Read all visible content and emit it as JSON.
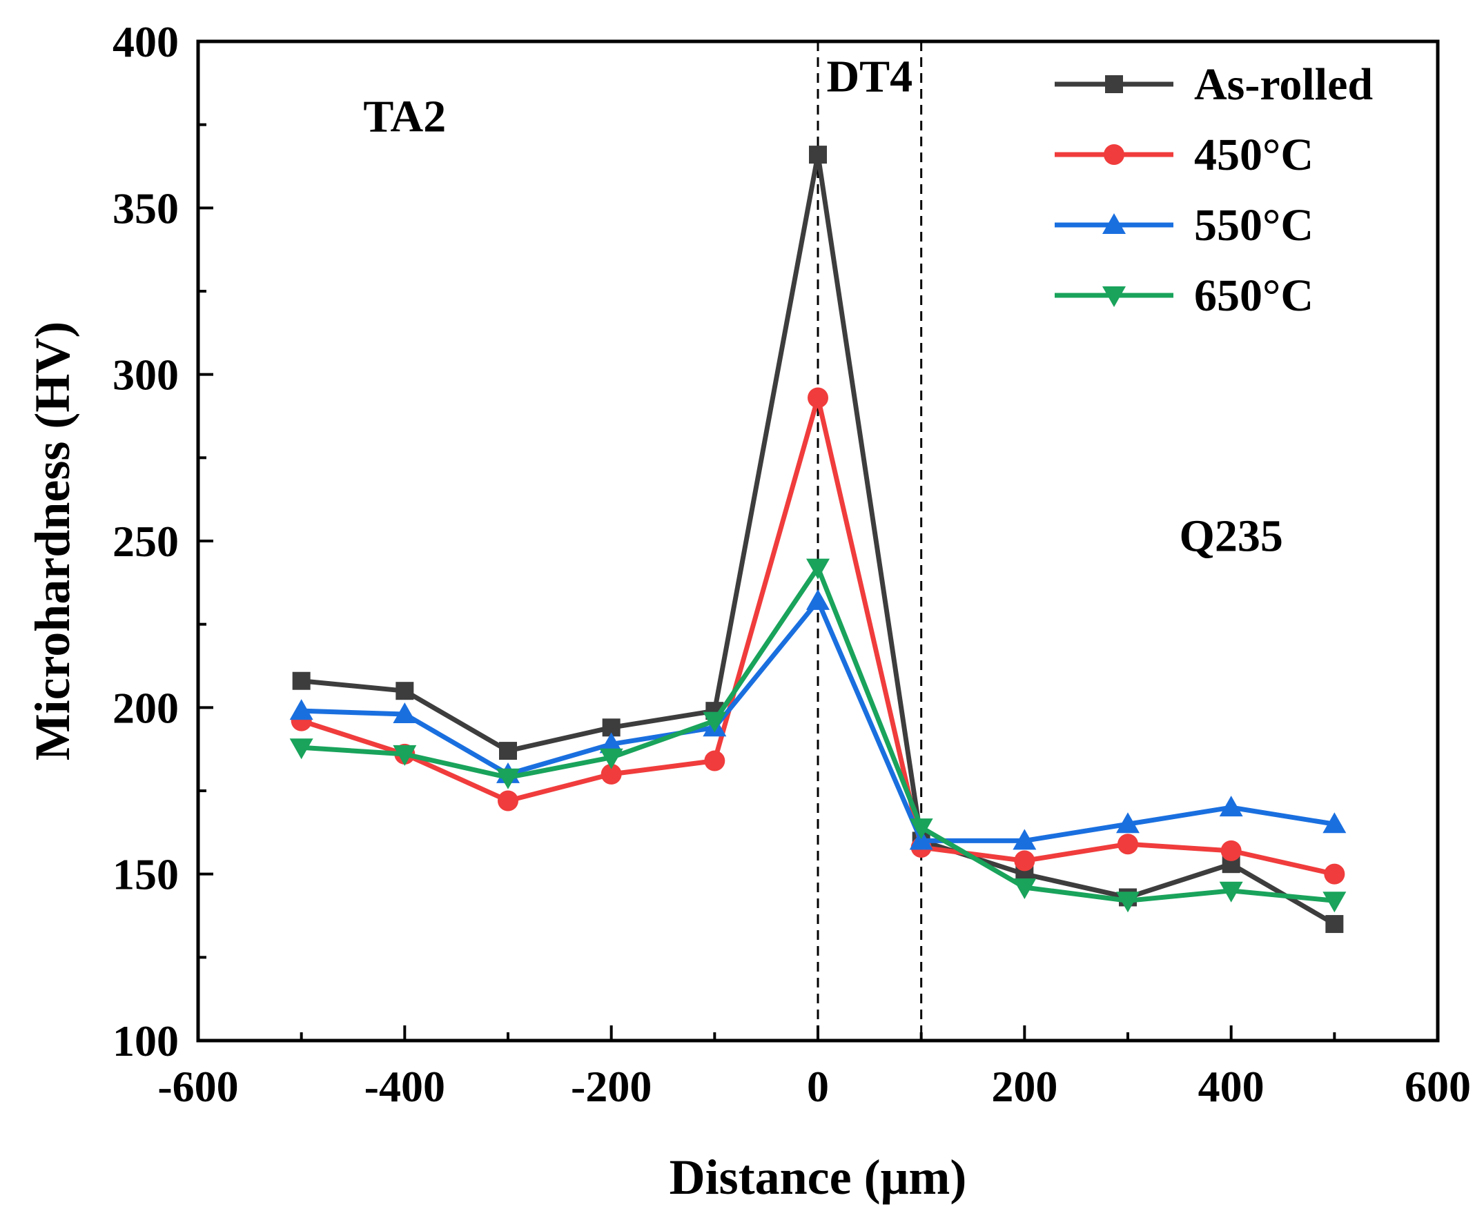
{
  "chart_data": {
    "type": "line",
    "title": "",
    "xlabel": "Distance (μm)",
    "ylabel": "Microhardness (HV)",
    "xlim": [
      -600,
      600
    ],
    "ylim": [
      100,
      400
    ],
    "xticks": [
      "-600",
      "-400",
      "-200",
      "0",
      "200",
      "400",
      "600"
    ],
    "xtick_values": [
      -600,
      -400,
      -200,
      0,
      200,
      400,
      600
    ],
    "yticks": [
      "100",
      "150",
      "200",
      "250",
      "300",
      "350",
      "400"
    ],
    "ytick_values": [
      100,
      150,
      200,
      250,
      300,
      350,
      400
    ],
    "x": [
      -500,
      -400,
      -300,
      -200,
      -100,
      0,
      100,
      200,
      300,
      400,
      500
    ],
    "series": [
      {
        "name": "As-rolled",
        "color": "#3d3d3d",
        "marker": "square",
        "values": [
          208,
          205,
          187,
          194,
          199,
          366,
          160,
          150,
          143,
          153,
          135
        ]
      },
      {
        "name": "450°C",
        "color": "#f03c3c",
        "marker": "circle",
        "values": [
          196,
          186,
          172,
          180,
          184,
          293,
          158,
          154,
          159,
          157,
          150
        ]
      },
      {
        "name": "550°C",
        "color": "#1a6fdf",
        "marker": "triangle-up",
        "values": [
          199,
          198,
          180,
          189,
          194,
          232,
          160,
          160,
          165,
          170,
          165
        ]
      },
      {
        "name": "650°C",
        "color": "#19a35b",
        "marker": "triangle-down",
        "values": [
          188,
          186,
          179,
          185,
          196,
          242,
          164,
          146,
          142,
          145,
          142
        ]
      }
    ],
    "reference_lines_x": [
      0,
      100
    ],
    "annotations": [
      {
        "text": "TA2",
        "x": -400,
        "y": 373
      },
      {
        "text": "DT4",
        "x": 50,
        "y": 385
      },
      {
        "text": "Q235",
        "x": 400,
        "y": 247
      }
    ],
    "legend_position": "top-right",
    "grid": false
  }
}
